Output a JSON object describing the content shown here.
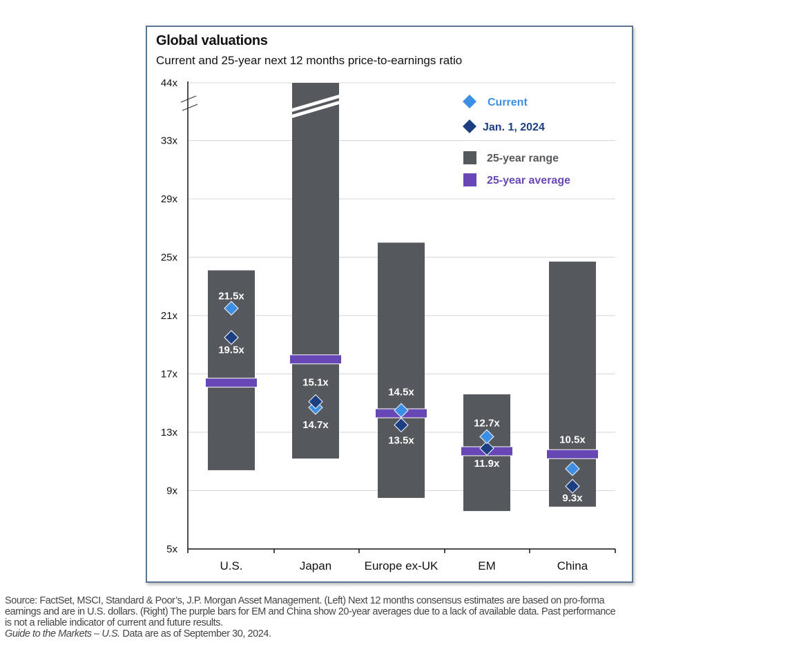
{
  "chart_data": {
    "type": "range-bar",
    "title": "Global valuations",
    "subtitle": "Current and 25-year next 12 months price-to-earnings ratio",
    "xlabel": "",
    "ylabel": "",
    "ylim": [
      5,
      44
    ],
    "y_ticks": [
      5,
      9,
      13,
      17,
      21,
      25,
      29,
      33,
      44
    ],
    "y_tick_labels": [
      "5x",
      "9x",
      "13x",
      "17x",
      "21x",
      "25x",
      "29x",
      "33x",
      "44x"
    ],
    "axis_break": "between 33x and 44x",
    "grid": true,
    "categories": [
      "U.S.",
      "Japan",
      "Europe ex-UK",
      "EM",
      "China"
    ],
    "series": [
      {
        "name": "25-year range",
        "type": "range",
        "color": "#55585c",
        "low": [
          10.4,
          11.2,
          8.5,
          7.6,
          7.9
        ],
        "high": [
          24.1,
          44,
          26.0,
          15.6,
          24.7
        ],
        "broken": [
          false,
          true,
          false,
          false,
          false
        ]
      },
      {
        "name": "25-year average",
        "type": "marker-bar",
        "color": "#6747b5",
        "values": [
          16.4,
          18.0,
          14.3,
          11.7,
          11.5
        ]
      },
      {
        "name": "Current",
        "type": "diamond",
        "color": "#3d8fe6",
        "values": [
          21.5,
          14.7,
          14.5,
          12.7,
          10.5
        ],
        "labels": [
          "21.5x",
          "14.7x",
          "14.5x",
          "12.7x",
          "10.5x"
        ]
      },
      {
        "name": "Jan. 1, 2024",
        "type": "diamond",
        "color": "#1d3f82",
        "values": [
          19.5,
          15.1,
          13.5,
          11.9,
          9.3
        ],
        "labels": [
          "19.5x",
          "15.1x",
          "13.5x",
          "11.9x",
          "9.3x"
        ]
      }
    ],
    "legend": {
      "position": "top-right",
      "items": [
        {
          "label": "Current",
          "shape": "diamond",
          "color": "#3d8fe6"
        },
        {
          "label": "Jan. 1, 2024",
          "shape": "diamond",
          "color": "#1d3f82"
        },
        {
          "label": "25-year range",
          "shape": "square",
          "color": "#55585c"
        },
        {
          "label": "25-year average",
          "shape": "square",
          "color": "#6747b5"
        }
      ]
    }
  },
  "footnote": {
    "line1": "Source: FactSet, MSCI, Standard & Poor’s, J.P. Morgan Asset Management. (Left) Next 12 months consensus estimates are based on pro-forma",
    "line2": "earnings and are in U.S. dollars. (Right) The purple bars for EM and China show 20-year averages due to a lack of available data. Past performance",
    "line3": "is not a reliable indicator of current and future results.",
    "line4_italic": "Guide to the Markets – U.S.",
    "line4_rest": " Data are as of September 30, 2024."
  }
}
